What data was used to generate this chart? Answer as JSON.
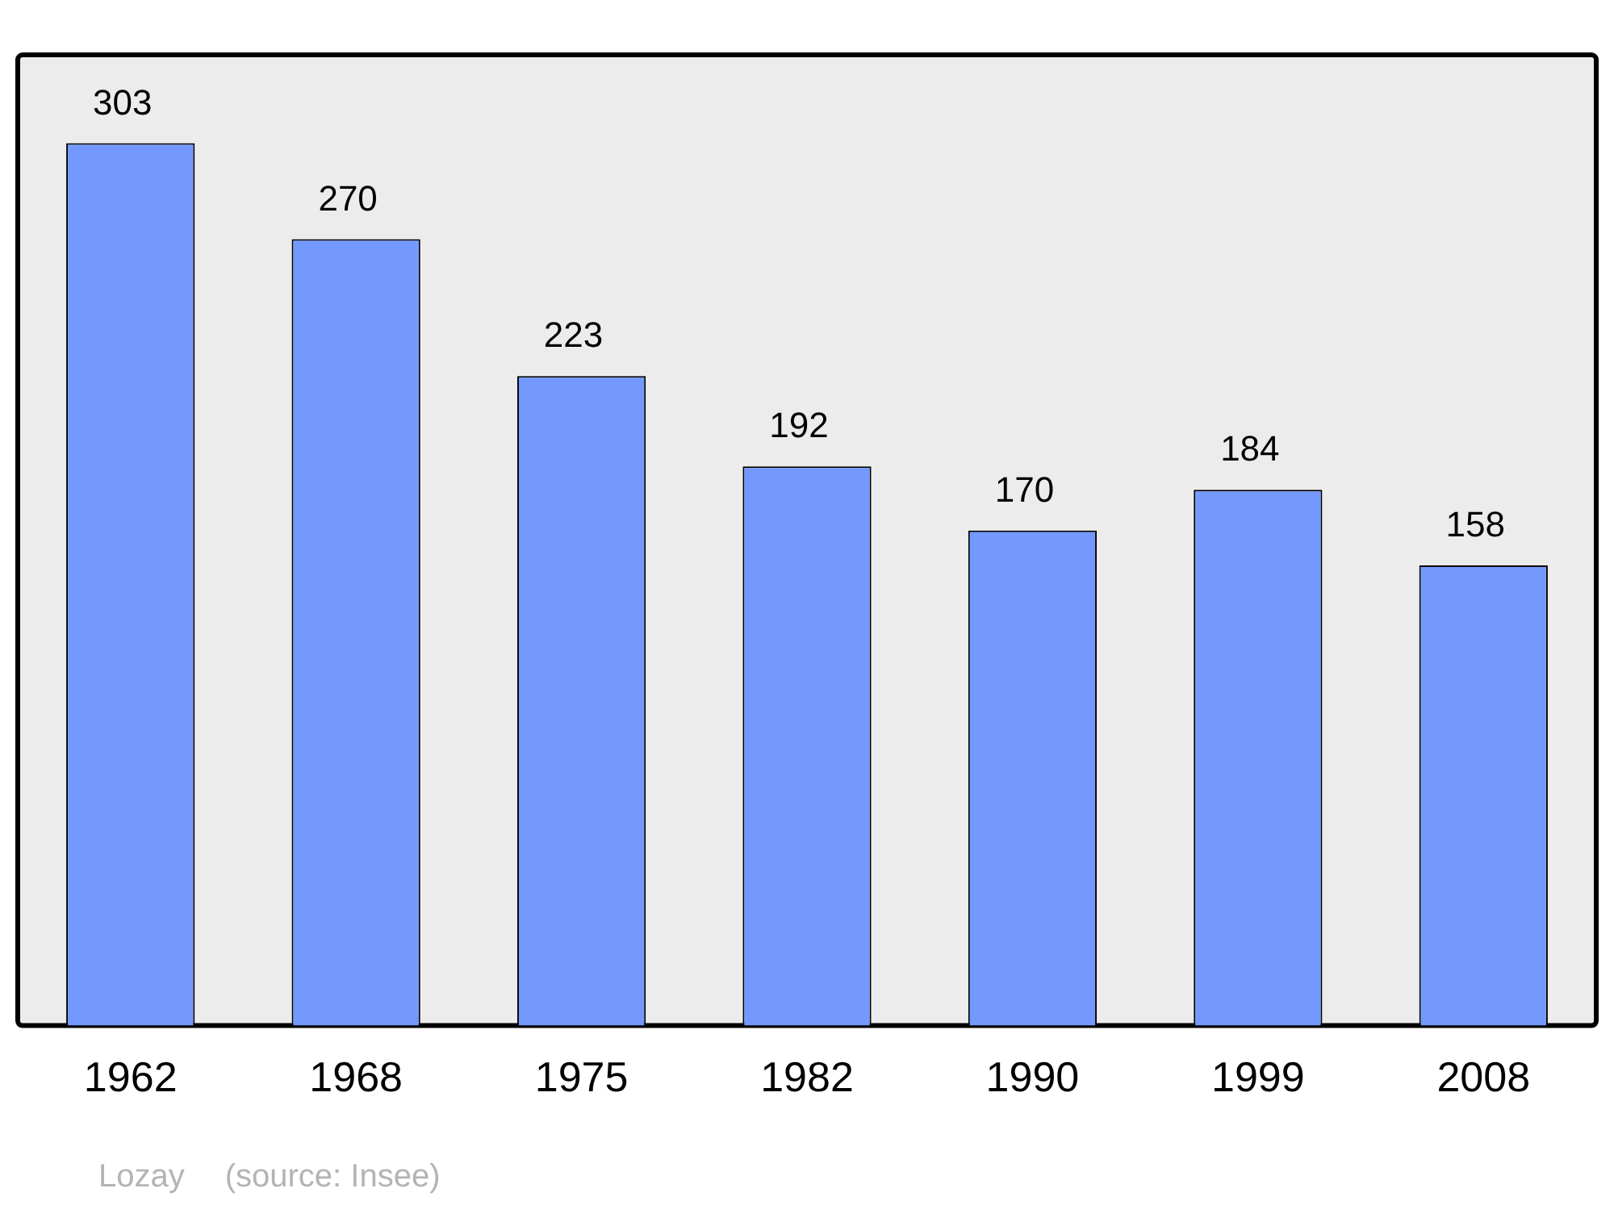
{
  "chart_data": {
    "type": "bar",
    "categories": [
      "1962",
      "1968",
      "1975",
      "1982",
      "1990",
      "1999",
      "2008"
    ],
    "values": [
      303,
      270,
      223,
      192,
      170,
      184,
      158
    ],
    "color": "#7399ff",
    "data_labels": true,
    "grid": false,
    "legend": false,
    "annotations": [
      "Lozay",
      "(source: Insee)"
    ]
  }
}
